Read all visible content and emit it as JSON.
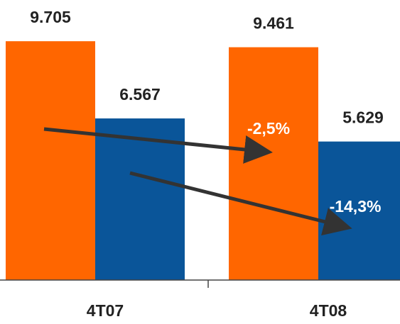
{
  "chart_data": {
    "type": "bar",
    "categories": [
      "4T07",
      "4T08"
    ],
    "series": [
      {
        "color": "#ff6600",
        "values": [
          9705,
          9461
        ],
        "value_labels": [
          "9.705",
          "9.461"
        ]
      },
      {
        "color": "#0a5599",
        "values": [
          6567,
          5629
        ],
        "value_labels": [
          "6.567",
          "5.629"
        ]
      }
    ],
    "ylim": [
      0,
      11380
    ],
    "annotations": [
      "-2,5%",
      "-14,3%"
    ]
  }
}
